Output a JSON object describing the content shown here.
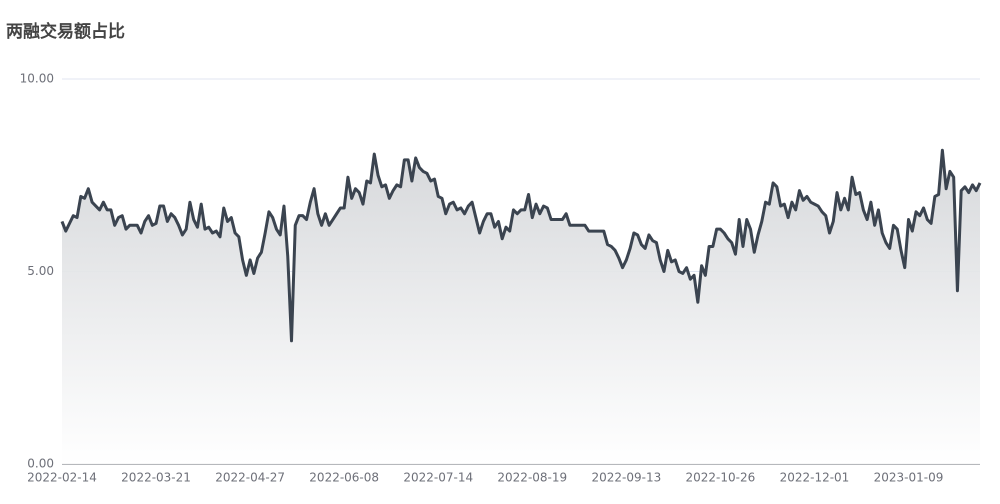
{
  "chart_data": {
    "type": "line",
    "title": "两融交易额占比",
    "color": "#3b4450",
    "area": true,
    "grid": true,
    "ylim": [
      0,
      10
    ],
    "yticks": [
      {
        "value": 0,
        "label": "0.00"
      },
      {
        "value": 5,
        "label": "5.00"
      },
      {
        "value": 10,
        "label": "10.00"
      }
    ],
    "categories": [
      "2022-02-14",
      null,
      null,
      null,
      null,
      null,
      null,
      null,
      null,
      null,
      null,
      null,
      null,
      null,
      null,
      null,
      null,
      null,
      null,
      null,
      null,
      null,
      null,
      null,
      null,
      "2022-03-21",
      null,
      null,
      null,
      null,
      null,
      null,
      null,
      null,
      null,
      null,
      null,
      null,
      null,
      null,
      null,
      null,
      null,
      null,
      null,
      null,
      null,
      null,
      null,
      null,
      "2022-04-27",
      null,
      null,
      null,
      null,
      null,
      null,
      null,
      null,
      null,
      null,
      null,
      null,
      null,
      null,
      null,
      null,
      null,
      null,
      null,
      null,
      null,
      null,
      null,
      null,
      "2022-06-08",
      null,
      null,
      null,
      null,
      null,
      null,
      null,
      null,
      null,
      null,
      null,
      null,
      null,
      null,
      null,
      null,
      null,
      null,
      null,
      null,
      null,
      null,
      null,
      null,
      "2022-07-14",
      null,
      null,
      null,
      null,
      null,
      null,
      null,
      null,
      null,
      null,
      null,
      null,
      null,
      null,
      null,
      null,
      null,
      null,
      null,
      null,
      null,
      null,
      null,
      null,
      "2022-08-19",
      null,
      null,
      null,
      null,
      null,
      null,
      null,
      null,
      null,
      null,
      null,
      null,
      null,
      null,
      null,
      null,
      null,
      null,
      null,
      null,
      null,
      null,
      null,
      null,
      "2022-09-13",
      null,
      null,
      null,
      null,
      null,
      null,
      null,
      null,
      null,
      null,
      null,
      null,
      null,
      null,
      null,
      null,
      null,
      null,
      null,
      null,
      null,
      null,
      null,
      null,
      "2022-10-26",
      null,
      null,
      null,
      null,
      null,
      null,
      null,
      null,
      null,
      null,
      null,
      null,
      null,
      null,
      null,
      null,
      null,
      null,
      null,
      null,
      null,
      null,
      null,
      null,
      "2022-12-01",
      null,
      null,
      null,
      null,
      null,
      null,
      null,
      null,
      null,
      null,
      null,
      null,
      null,
      null,
      null,
      null,
      null,
      null,
      null,
      null,
      null,
      null,
      null,
      null,
      "2023-01-09",
      null,
      null,
      null,
      null,
      null,
      null,
      null,
      null,
      null,
      null,
      null,
      null,
      null,
      null,
      null,
      null,
      null,
      null,
      null
    ],
    "values": [
      6.3,
      6.05,
      6.25,
      6.45,
      6.4,
      6.95,
      6.9,
      7.15,
      6.8,
      6.7,
      6.6,
      6.8,
      6.6,
      6.6,
      6.2,
      6.4,
      6.45,
      6.1,
      6.2,
      6.2,
      6.2,
      6.0,
      6.3,
      6.45,
      6.2,
      6.25,
      6.7,
      6.7,
      6.3,
      6.5,
      6.4,
      6.2,
      5.95,
      6.1,
      6.8,
      6.35,
      6.15,
      6.75,
      6.1,
      6.15,
      6.0,
      6.05,
      5.9,
      6.65,
      6.3,
      6.4,
      6.0,
      5.9,
      5.3,
      4.9,
      5.3,
      4.95,
      5.35,
      5.5,
      6.0,
      6.55,
      6.4,
      6.1,
      5.95,
      6.7,
      5.4,
      3.2,
      6.2,
      6.45,
      6.45,
      6.35,
      6.8,
      7.15,
      6.5,
      6.2,
      6.5,
      6.2,
      6.35,
      6.5,
      6.65,
      6.65,
      7.45,
      6.9,
      7.15,
      7.05,
      6.75,
      7.35,
      7.3,
      8.05,
      7.5,
      7.2,
      7.25,
      6.9,
      7.1,
      7.25,
      7.2,
      7.9,
      7.9,
      7.35,
      7.95,
      7.7,
      7.6,
      7.55,
      7.35,
      7.4,
      6.95,
      6.9,
      6.5,
      6.75,
      6.8,
      6.6,
      6.65,
      6.5,
      6.7,
      6.8,
      6.4,
      6.0,
      6.3,
      6.5,
      6.5,
      6.15,
      6.3,
      5.85,
      6.15,
      6.05,
      6.6,
      6.5,
      6.6,
      6.6,
      7.0,
      6.4,
      6.75,
      6.5,
      6.7,
      6.65,
      6.35,
      6.35,
      6.35,
      6.35,
      6.5,
      6.2,
      6.2,
      6.2,
      6.2,
      6.2,
      6.05,
      6.05,
      6.05,
      6.05,
      6.05,
      5.7,
      5.65,
      5.55,
      5.35,
      5.1,
      5.3,
      5.6,
      6.0,
      5.95,
      5.7,
      5.6,
      5.95,
      5.8,
      5.75,
      5.3,
      5.0,
      5.55,
      5.25,
      5.3,
      5.0,
      4.95,
      5.1,
      4.8,
      4.9,
      4.2,
      5.15,
      4.9,
      5.65,
      5.65,
      6.1,
      6.1,
      6.0,
      5.85,
      5.75,
      5.45,
      6.35,
      5.65,
      6.35,
      6.1,
      5.5,
      5.95,
      6.3,
      6.8,
      6.75,
      7.3,
      7.2,
      6.7,
      6.75,
      6.4,
      6.8,
      6.6,
      7.1,
      6.85,
      6.95,
      6.8,
      6.75,
      6.7,
      6.55,
      6.45,
      6.0,
      6.3,
      7.05,
      6.6,
      6.9,
      6.6,
      7.45,
      7.0,
      7.05,
      6.6,
      6.35,
      6.8,
      6.2,
      6.6,
      6.0,
      5.75,
      5.6,
      6.2,
      6.1,
      5.55,
      5.1,
      6.35,
      6.05,
      6.55,
      6.45,
      6.65,
      6.35,
      6.25,
      6.95,
      7.0,
      8.15,
      7.15,
      7.6,
      7.45,
      4.5,
      7.1,
      7.2,
      7.05,
      7.25,
      7.1,
      7.3
    ]
  }
}
